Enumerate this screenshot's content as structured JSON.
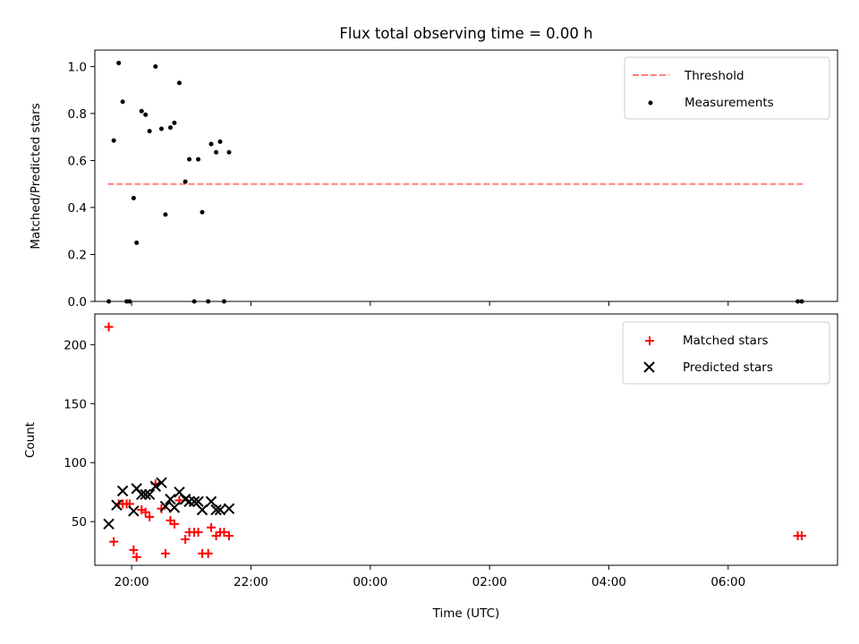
{
  "title": "Flux total observing time = 0.00 h",
  "colors": {
    "threshold": "#ff7f7f",
    "measurement": "#000000",
    "matched": "#ff0000",
    "predicted": "#000000"
  },
  "chart_data": [
    {
      "type": "scatter",
      "title": "Flux total observing time = 0.00 h",
      "xlabel": "",
      "ylabel": "Matched/Predicted stars",
      "xlim": [
        "19:23",
        "07:50"
      ],
      "ylim": [
        0,
        1.07
      ],
      "yticks": [
        "0.0",
        "0.2",
        "0.4",
        "0.6",
        "0.8",
        "1.0"
      ],
      "xticks": [
        "20:00",
        "22:00",
        "00:00",
        "02:00",
        "04:00",
        "06:00"
      ],
      "xtick_labels_visible": false,
      "legend": {
        "position": "top-right",
        "entries": [
          "Threshold",
          "Measurements"
        ]
      },
      "threshold": {
        "name": "Threshold",
        "style": "dashed",
        "value": 0.5,
        "x_start": "19:36",
        "x_end": "07:15"
      },
      "series": [
        {
          "name": "Measurements",
          "marker": "dot",
          "points": [
            {
              "x": "19:37",
              "y": 0.0
            },
            {
              "x": "19:42",
              "y": 0.685
            },
            {
              "x": "19:47",
              "y": 1.015
            },
            {
              "x": "19:51",
              "y": 0.85
            },
            {
              "x": "19:55",
              "y": 0.0
            },
            {
              "x": "19:58",
              "y": 0.0
            },
            {
              "x": "20:02",
              "y": 0.44
            },
            {
              "x": "20:05",
              "y": 0.25
            },
            {
              "x": "20:10",
              "y": 0.81
            },
            {
              "x": "20:14",
              "y": 0.795
            },
            {
              "x": "20:18",
              "y": 0.725
            },
            {
              "x": "20:24",
              "y": 1.0
            },
            {
              "x": "20:30",
              "y": 0.735
            },
            {
              "x": "20:34",
              "y": 0.37
            },
            {
              "x": "20:39",
              "y": 0.74
            },
            {
              "x": "20:43",
              "y": 0.76
            },
            {
              "x": "20:48",
              "y": 0.93
            },
            {
              "x": "20:54",
              "y": 0.51
            },
            {
              "x": "20:58",
              "y": 0.605
            },
            {
              "x": "21:03",
              "y": 0.0
            },
            {
              "x": "21:07",
              "y": 0.605
            },
            {
              "x": "21:11",
              "y": 0.38
            },
            {
              "x": "21:17",
              "y": 0.0
            },
            {
              "x": "21:20",
              "y": 0.67
            },
            {
              "x": "21:25",
              "y": 0.635
            },
            {
              "x": "21:29",
              "y": 0.68
            },
            {
              "x": "21:33",
              "y": 0.0
            },
            {
              "x": "21:38",
              "y": 0.635
            },
            {
              "x": "07:10",
              "y": 0.0
            },
            {
              "x": "07:14",
              "y": 0.0
            }
          ]
        }
      ]
    },
    {
      "type": "scatter",
      "title": "",
      "xlabel": "Time (UTC)",
      "ylabel": "Count",
      "xlim": [
        "19:23",
        "07:50"
      ],
      "ylim": [
        13,
        226
      ],
      "yticks": [
        "50",
        "100",
        "150",
        "200"
      ],
      "xticks": [
        "20:00",
        "22:00",
        "00:00",
        "02:00",
        "04:00",
        "06:00"
      ],
      "legend": {
        "position": "top-right",
        "entries": [
          "Matched stars",
          "Predicted stars"
        ]
      },
      "series": [
        {
          "name": "Matched stars",
          "marker": "plus",
          "points": [
            {
              "x": "19:37",
              "y": 215
            },
            {
              "x": "19:42",
              "y": 33
            },
            {
              "x": "19:47",
              "y": 65
            },
            {
              "x": "19:51",
              "y": 65
            },
            {
              "x": "19:55",
              "y": 65
            },
            {
              "x": "19:58",
              "y": 65
            },
            {
              "x": "20:02",
              "y": 26
            },
            {
              "x": "20:05",
              "y": 20
            },
            {
              "x": "20:10",
              "y": 60
            },
            {
              "x": "20:14",
              "y": 58
            },
            {
              "x": "20:18",
              "y": 54
            },
            {
              "x": "20:24",
              "y": 82
            },
            {
              "x": "20:30",
              "y": 61
            },
            {
              "x": "20:34",
              "y": 23
            },
            {
              "x": "20:39",
              "y": 51
            },
            {
              "x": "20:43",
              "y": 48
            },
            {
              "x": "20:48",
              "y": 68
            },
            {
              "x": "20:54",
              "y": 35
            },
            {
              "x": "20:58",
              "y": 41
            },
            {
              "x": "21:03",
              "y": 41
            },
            {
              "x": "21:07",
              "y": 41
            },
            {
              "x": "21:11",
              "y": 23
            },
            {
              "x": "21:17",
              "y": 23
            },
            {
              "x": "21:20",
              "y": 45
            },
            {
              "x": "21:25",
              "y": 38
            },
            {
              "x": "21:29",
              "y": 41
            },
            {
              "x": "21:33",
              "y": 41
            },
            {
              "x": "21:38",
              "y": 38
            },
            {
              "x": "07:10",
              "y": 38
            },
            {
              "x": "07:14",
              "y": 38
            }
          ]
        },
        {
          "name": "Predicted stars",
          "marker": "x",
          "points": [
            {
              "x": "19:37",
              "y": 48
            },
            {
              "x": "19:45",
              "y": 64
            },
            {
              "x": "19:51",
              "y": 76
            },
            {
              "x": "20:02",
              "y": 59
            },
            {
              "x": "20:05",
              "y": 78
            },
            {
              "x": "20:10",
              "y": 73
            },
            {
              "x": "20:14",
              "y": 73
            },
            {
              "x": "20:18",
              "y": 73
            },
            {
              "x": "20:24",
              "y": 80
            },
            {
              "x": "20:30",
              "y": 83
            },
            {
              "x": "20:34",
              "y": 63
            },
            {
              "x": "20:39",
              "y": 69
            },
            {
              "x": "20:43",
              "y": 62
            },
            {
              "x": "20:48",
              "y": 75
            },
            {
              "x": "20:54",
              "y": 69
            },
            {
              "x": "20:58",
              "y": 67
            },
            {
              "x": "21:03",
              "y": 67
            },
            {
              "x": "21:07",
              "y": 67
            },
            {
              "x": "21:11",
              "y": 60
            },
            {
              "x": "21:20",
              "y": 67
            },
            {
              "x": "21:25",
              "y": 60
            },
            {
              "x": "21:29",
              "y": 60
            },
            {
              "x": "21:38",
              "y": 61
            }
          ]
        }
      ]
    }
  ]
}
